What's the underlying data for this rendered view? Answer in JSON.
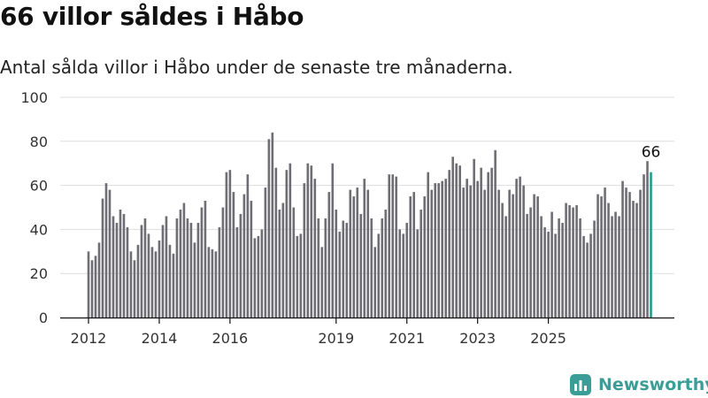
{
  "header": {
    "title": "66 villor såldes i Håbo",
    "subtitle": "Antal sålda villor i Håbo under de senaste tre månaderna."
  },
  "brand": {
    "name": "Newsworthy",
    "icon": "newsworthy-logo-icon",
    "color": "#3a9e96"
  },
  "colors": {
    "bar": "#6f6e74",
    "highlight": "#1f9e8e",
    "grid": "#dddddd",
    "axis": "#111111"
  },
  "chart_data": {
    "type": "bar",
    "title": "",
    "xlabel": "",
    "ylabel": "",
    "ylim": [
      0,
      100
    ],
    "yticks": [
      0,
      20,
      40,
      60,
      80,
      100
    ],
    "grid": true,
    "xticks": [
      {
        "label": "2012",
        "index": 0
      },
      {
        "label": "2014",
        "index": 20
      },
      {
        "label": "2016",
        "index": 40
      },
      {
        "label": "2019",
        "index": 70
      },
      {
        "label": "2021",
        "index": 90
      },
      {
        "label": "2023",
        "index": 110
      },
      {
        "label": "2025",
        "index": 130
      }
    ],
    "values": [
      30,
      26,
      28,
      34,
      54,
      61,
      58,
      46,
      43,
      49,
      47,
      41,
      30,
      26,
      33,
      42,
      45,
      38,
      32,
      30,
      35,
      42,
      46,
      33,
      29,
      45,
      49,
      52,
      45,
      43,
      34,
      43,
      50,
      53,
      32,
      31,
      30,
      41,
      50,
      66,
      67,
      57,
      41,
      47,
      56,
      65,
      53,
      36,
      37,
      40,
      59,
      81,
      84,
      68,
      49,
      52,
      67,
      70,
      50,
      37,
      38,
      61,
      70,
      69,
      63,
      45,
      32,
      45,
      57,
      70,
      49,
      39,
      44,
      43,
      58,
      55,
      59,
      47,
      63,
      58,
      45,
      32,
      38,
      45,
      49,
      65,
      65,
      64,
      40,
      38,
      43,
      55,
      57,
      40,
      49,
      55,
      66,
      58,
      61,
      61,
      62,
      63,
      67,
      73,
      70,
      69,
      59,
      63,
      60,
      72,
      62,
      68,
      58,
      66,
      68,
      76,
      58,
      52,
      46,
      58,
      56,
      63,
      64,
      60,
      47,
      50,
      56,
      55,
      46,
      41,
      39,
      48,
      38,
      45,
      43,
      52,
      51,
      50,
      51,
      45,
      37,
      34,
      38,
      44,
      56,
      55,
      59,
      52,
      46,
      48,
      46,
      62,
      59,
      57,
      53,
      52,
      58,
      65,
      71,
      66
    ],
    "highlight_index": 159,
    "annotations": [
      {
        "index": 159,
        "text": "66"
      }
    ]
  }
}
